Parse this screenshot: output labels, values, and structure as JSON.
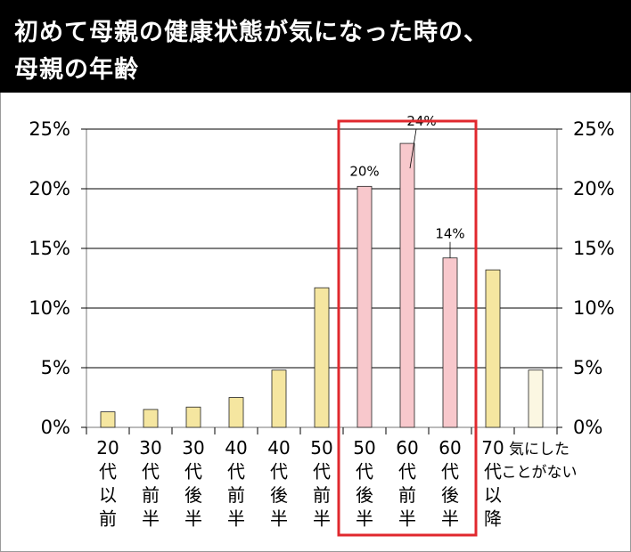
{
  "title": {
    "line1": "初めて母親の健康状態が気になった時の、",
    "line2": "母親の年齢"
  },
  "colors": {
    "title_bg": "#000000",
    "title_fg": "#ffffff",
    "bar_default": "#f5e6a0",
    "bar_highlight": "#f8c8cc",
    "bar_never": "#fbf7e2",
    "highlight_box": "#e0282e"
  },
  "chart_data": {
    "type": "bar",
    "title": "初めて母親の健康状態が気になった時の、母親の年齢",
    "categories": [
      "20代以前",
      "30代前半",
      "30代後半",
      "40代前半",
      "40代後半",
      "50代前半",
      "50代後半",
      "60代前半",
      "60代後半",
      "70代以降",
      "気にしたことがない"
    ],
    "category_lines": [
      [
        "20",
        "代",
        "以",
        "前"
      ],
      [
        "30",
        "代",
        "前",
        "半"
      ],
      [
        "30",
        "代",
        "後",
        "半"
      ],
      [
        "40",
        "代",
        "前",
        "半"
      ],
      [
        "40",
        "代",
        "後",
        "半"
      ],
      [
        "50",
        "代",
        "前",
        "半"
      ],
      [
        "50",
        "代",
        "後",
        "半"
      ],
      [
        "60",
        "代",
        "前",
        "半"
      ],
      [
        "60",
        "代",
        "後",
        "半"
      ],
      [
        "70",
        "代",
        "以",
        "降"
      ],
      [
        "気にした",
        "ことがない"
      ]
    ],
    "values": [
      1.3,
      1.5,
      1.7,
      2.5,
      4.8,
      11.7,
      20.2,
      23.8,
      14.2,
      13.2,
      4.8
    ],
    "highlighted": [
      false,
      false,
      false,
      false,
      false,
      false,
      true,
      true,
      true,
      false,
      false
    ],
    "data_labels": [
      {
        "index": 6,
        "text": "20%"
      },
      {
        "index": 7,
        "text": "24%"
      },
      {
        "index": 8,
        "text": "14%"
      }
    ],
    "yticks": [
      "0%",
      "5%",
      "10%",
      "15%",
      "20%",
      "25%"
    ],
    "ylim": [
      0,
      25
    ],
    "grid": true,
    "highlight_range": [
      6,
      8
    ]
  }
}
